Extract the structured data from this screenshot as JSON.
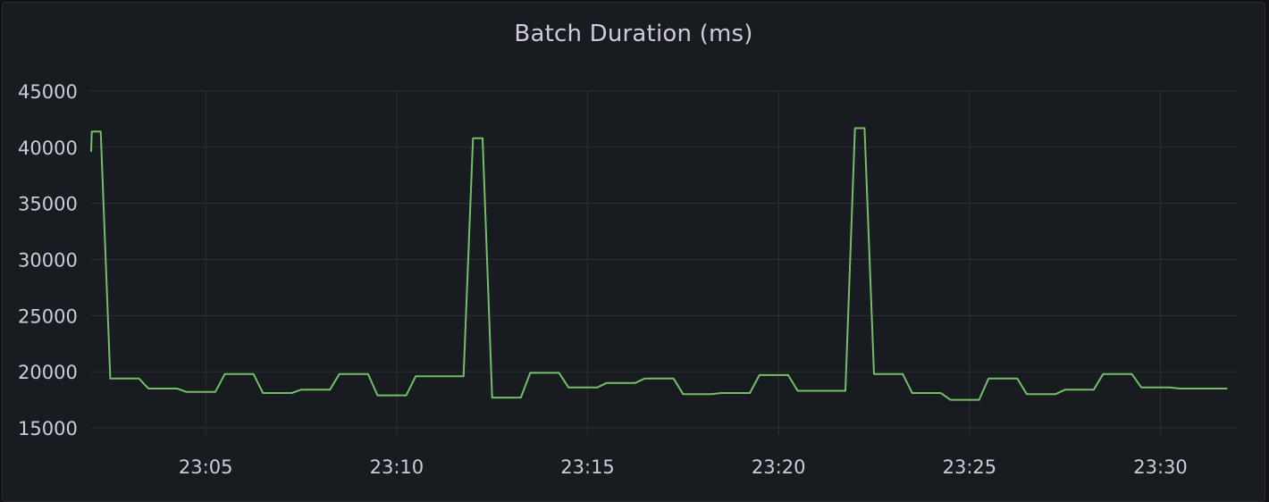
{
  "panel": {
    "title": "Batch Duration (ms)"
  },
  "chart_data": {
    "type": "line",
    "title": "Batch Duration (ms)",
    "xlabel": "",
    "ylabel": "",
    "xlim": [
      "23:02",
      "23:32"
    ],
    "ylim": [
      15000,
      45000
    ],
    "y_ticks": [
      15000,
      20000,
      25000,
      30000,
      35000,
      40000,
      45000
    ],
    "x_ticks": [
      "23:05",
      "23:10",
      "23:15",
      "23:20",
      "23:25",
      "23:30"
    ],
    "grid": true,
    "legend": "none",
    "series": [
      {
        "color": "#73bf69",
        "points": [
          [
            "23:02:00",
            39600
          ],
          [
            "23:02:01",
            41400
          ],
          [
            "23:02:15",
            41400
          ],
          [
            "23:02:30",
            19400
          ],
          [
            "23:03:15",
            19400
          ],
          [
            "23:03:30",
            18500
          ],
          [
            "23:04:15",
            18500
          ],
          [
            "23:04:30",
            18200
          ],
          [
            "23:05:15",
            18200
          ],
          [
            "23:05:30",
            19800
          ],
          [
            "23:06:15",
            19800
          ],
          [
            "23:06:30",
            18100
          ],
          [
            "23:07:15",
            18100
          ],
          [
            "23:07:30",
            18400
          ],
          [
            "23:08:15",
            18400
          ],
          [
            "23:08:30",
            19800
          ],
          [
            "23:09:15",
            19800
          ],
          [
            "23:09:30",
            17900
          ],
          [
            "23:10:15",
            17900
          ],
          [
            "23:10:30",
            19600
          ],
          [
            "23:11:45",
            19600
          ],
          [
            "23:12:00",
            40800
          ],
          [
            "23:12:15",
            40800
          ],
          [
            "23:12:30",
            17700
          ],
          [
            "23:13:15",
            17700
          ],
          [
            "23:13:30",
            19900
          ],
          [
            "23:14:15",
            19900
          ],
          [
            "23:14:30",
            18600
          ],
          [
            "23:15:15",
            18600
          ],
          [
            "23:15:30",
            19000
          ],
          [
            "23:16:15",
            19000
          ],
          [
            "23:16:30",
            19400
          ],
          [
            "23:17:15",
            19400
          ],
          [
            "23:17:30",
            18000
          ],
          [
            "23:18:15",
            18000
          ],
          [
            "23:18:30",
            18100
          ],
          [
            "23:19:15",
            18100
          ],
          [
            "23:19:30",
            19700
          ],
          [
            "23:20:15",
            19700
          ],
          [
            "23:20:30",
            18300
          ],
          [
            "23:21:45",
            18300
          ],
          [
            "23:22:00",
            41700
          ],
          [
            "23:22:15",
            41700
          ],
          [
            "23:22:30",
            19800
          ],
          [
            "23:23:15",
            19800
          ],
          [
            "23:23:30",
            18100
          ],
          [
            "23:24:15",
            18100
          ],
          [
            "23:24:30",
            17500
          ],
          [
            "23:25:15",
            17500
          ],
          [
            "23:25:30",
            19400
          ],
          [
            "23:26:15",
            19400
          ],
          [
            "23:26:30",
            18000
          ],
          [
            "23:27:15",
            18000
          ],
          [
            "23:27:30",
            18400
          ],
          [
            "23:28:15",
            18400
          ],
          [
            "23:28:30",
            19800
          ],
          [
            "23:29:15",
            19800
          ],
          [
            "23:29:30",
            18600
          ],
          [
            "23:30:15",
            18600
          ],
          [
            "23:30:30",
            18500
          ],
          [
            "23:31:45",
            18500
          ]
        ]
      }
    ]
  }
}
